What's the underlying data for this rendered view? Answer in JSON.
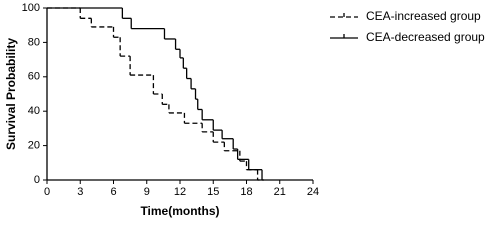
{
  "chart_data": {
    "type": "line",
    "step": true,
    "x_label": "Time(months)",
    "y_label": "Survival Probability",
    "xlim": [
      0,
      24
    ],
    "xticks": [
      0,
      3,
      6,
      9,
      12,
      15,
      18,
      21,
      24
    ],
    "ylim": [
      0,
      100
    ],
    "yticks": [
      0,
      20,
      40,
      60,
      80,
      100
    ],
    "legend": "top-right",
    "series": [
      {
        "name": "CEA-increased group",
        "color": "#000000",
        "dashed": true,
        "x": [
          0,
          3,
          4,
          6,
          6.6,
          7.5,
          9.6,
          10.4,
          11,
          12.4,
          14,
          15,
          16,
          17.4,
          18,
          19
        ],
        "values": [
          100,
          94,
          89,
          83,
          72,
          61,
          50,
          44,
          39,
          33,
          28,
          22,
          17,
          11,
          6,
          0
        ]
      },
      {
        "name": "CEA-decreased group",
        "color": "#000000",
        "dashed": false,
        "x": [
          0,
          6.8,
          7.6,
          10.6,
          11.6,
          12,
          12.3,
          12.6,
          13,
          13.4,
          13.6,
          14,
          15,
          15.8,
          16.8,
          17.2,
          18.2,
          19.4
        ],
        "values": [
          100,
          94,
          88,
          82,
          76,
          71,
          65,
          59,
          53,
          47,
          41,
          35,
          29,
          24,
          18,
          12,
          6,
          0
        ]
      }
    ]
  }
}
